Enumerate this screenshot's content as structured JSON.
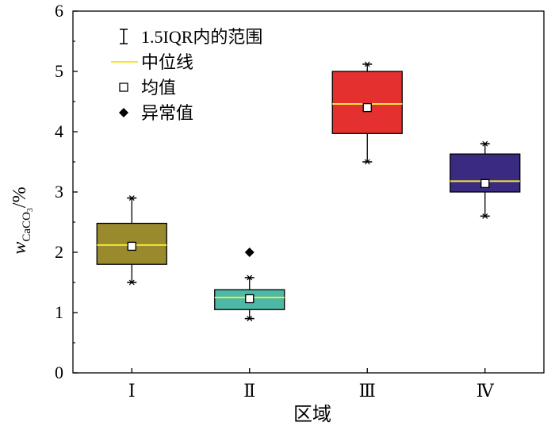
{
  "chart_data": {
    "type": "box",
    "xlabel": "区域",
    "ylabel": {
      "main": "w",
      "sub_pre": "CaCO",
      "sub_num": "3",
      "suffix": "/%"
    },
    "ylim": [
      0,
      6
    ],
    "yticks": [
      "0",
      "1",
      "2",
      "3",
      "4",
      "5",
      "6"
    ],
    "categories": [
      "Ⅰ",
      "Ⅱ",
      "Ⅲ",
      "Ⅳ"
    ],
    "boxes": [
      {
        "category": "Ⅰ",
        "whisker_low": 1.5,
        "q1": 1.8,
        "median": 2.12,
        "q3": 2.48,
        "whisker_high": 2.9,
        "mean": 2.1,
        "outliers": [],
        "color": "#9a8a2e"
      },
      {
        "category": "Ⅱ",
        "whisker_low": 0.9,
        "q1": 1.05,
        "median": 1.25,
        "q3": 1.38,
        "whisker_high": 1.58,
        "mean": 1.23,
        "outliers": [
          2.0
        ],
        "color": "#4db8a6"
      },
      {
        "category": "Ⅲ",
        "whisker_low": 3.5,
        "q1": 3.97,
        "median": 4.46,
        "q3": 5.0,
        "whisker_high": 5.12,
        "mean": 4.4,
        "outliers": [],
        "color": "#e53030"
      },
      {
        "category": "Ⅳ",
        "whisker_low": 2.6,
        "q1": 3.0,
        "median": 3.18,
        "q3": 3.63,
        "whisker_high": 3.8,
        "mean": 3.14,
        "outliers": [],
        "color": "#3a2a80"
      }
    ],
    "median_color": "#f2e83a",
    "legend": {
      "position": "top-left",
      "items": [
        {
          "symbol": "whisker",
          "label": "1.5IQR内的范围"
        },
        {
          "symbol": "median-line",
          "label": "中位线"
        },
        {
          "symbol": "mean-square",
          "label": "均值"
        },
        {
          "symbol": "outlier-diamond",
          "label": "异常值"
        }
      ]
    },
    "grid": false
  }
}
